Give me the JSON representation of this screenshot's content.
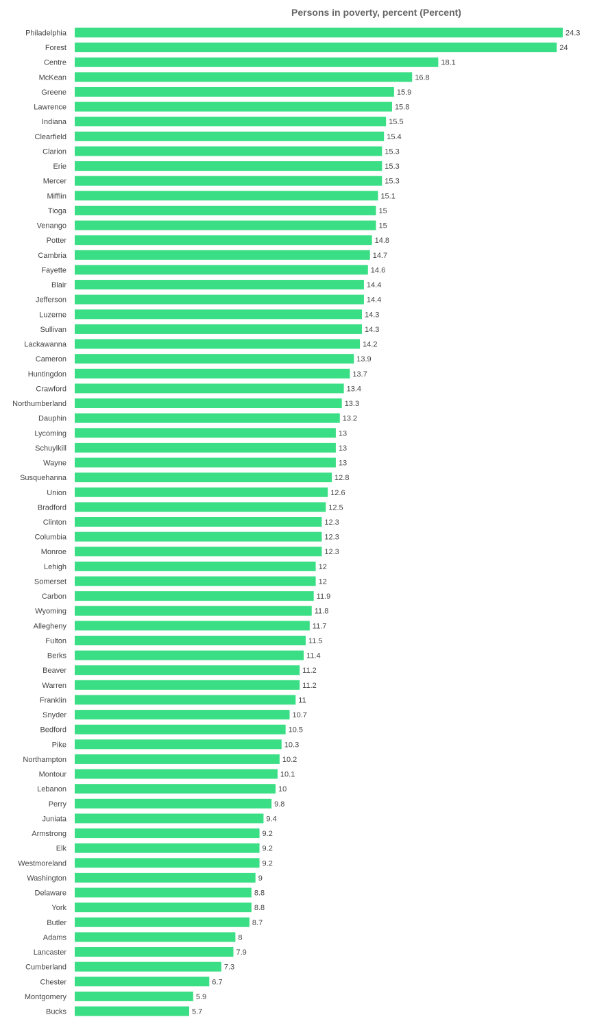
{
  "chart_data": {
    "type": "bar",
    "orientation": "horizontal",
    "title": "Persons in poverty, percent (Percent)",
    "bar_color": "#3ade84",
    "grid": false,
    "legend": "none",
    "xlim": [
      0,
      24.3
    ],
    "categories": [
      "Philadelphia",
      "Forest",
      "Centre",
      "McKean",
      "Greene",
      "Lawrence",
      "Indiana",
      "Clearfield",
      "Clarion",
      "Erie",
      "Mercer",
      "Mifflin",
      "Tioga",
      "Venango",
      "Potter",
      "Cambria",
      "Fayette",
      "Blair",
      "Jefferson",
      "Luzerne",
      "Sullivan",
      "Lackawanna",
      "Cameron",
      "Huntingdon",
      "Crawford",
      "Northumberland",
      "Dauphin",
      "Lycoming",
      "Schuylkill",
      "Wayne",
      "Susquehanna",
      "Union",
      "Bradford",
      "Clinton",
      "Columbia",
      "Monroe",
      "Lehigh",
      "Somerset",
      "Carbon",
      "Wyoming",
      "Allegheny",
      "Fulton",
      "Berks",
      "Beaver",
      "Warren",
      "Franklin",
      "Snyder",
      "Bedford",
      "Pike",
      "Northampton",
      "Montour",
      "Lebanon",
      "Perry",
      "Juniata",
      "Armstrong",
      "Elk",
      "Westmoreland",
      "Washington",
      "Delaware",
      "York",
      "Butler",
      "Adams",
      "Lancaster",
      "Cumberland",
      "Chester",
      "Montgomery",
      "Bucks"
    ],
    "values": [
      24.3,
      24,
      18.1,
      16.8,
      15.9,
      15.8,
      15.5,
      15.4,
      15.3,
      15.3,
      15.3,
      15.1,
      15,
      15,
      14.8,
      14.7,
      14.6,
      14.4,
      14.4,
      14.3,
      14.3,
      14.2,
      13.9,
      13.7,
      13.4,
      13.3,
      13.2,
      13,
      13,
      13,
      12.8,
      12.6,
      12.5,
      12.3,
      12.3,
      12.3,
      12,
      12,
      11.9,
      11.8,
      11.7,
      11.5,
      11.4,
      11.2,
      11.2,
      11,
      10.7,
      10.5,
      10.3,
      10.2,
      10.1,
      10,
      9.8,
      9.4,
      9.2,
      9.2,
      9.2,
      9,
      8.8,
      8.8,
      8.7,
      8,
      7.9,
      7.3,
      6.7,
      5.9,
      5.7
    ]
  }
}
